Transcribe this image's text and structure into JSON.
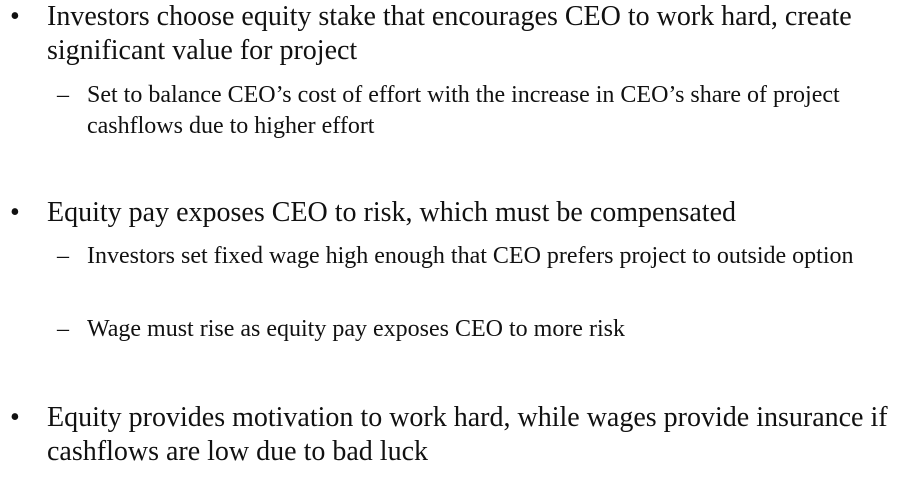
{
  "bullets": [
    {
      "marker": "•",
      "text": "Investors choose equity stake that encourages CEO to work hard, create significant value for project",
      "subitems": [
        {
          "marker": "–",
          "text": "Set to balance CEO’s cost of effort with the increase in CEO’s share of project cashflows due to higher effort"
        }
      ]
    },
    {
      "marker": "•",
      "text": "Equity pay exposes CEO to risk, which must be compensated",
      "subitems": [
        {
          "marker": "–",
          "text": "Investors set fixed wage high enough that CEO prefers project to outside option"
        },
        {
          "marker": "–",
          "text": "Wage must rise as equity pay exposes CEO to more risk"
        }
      ]
    },
    {
      "marker": "•",
      "text": "Equity provides motivation to work hard, while wages provide insurance if cashflows are low due to bad luck",
      "subitems": []
    }
  ]
}
